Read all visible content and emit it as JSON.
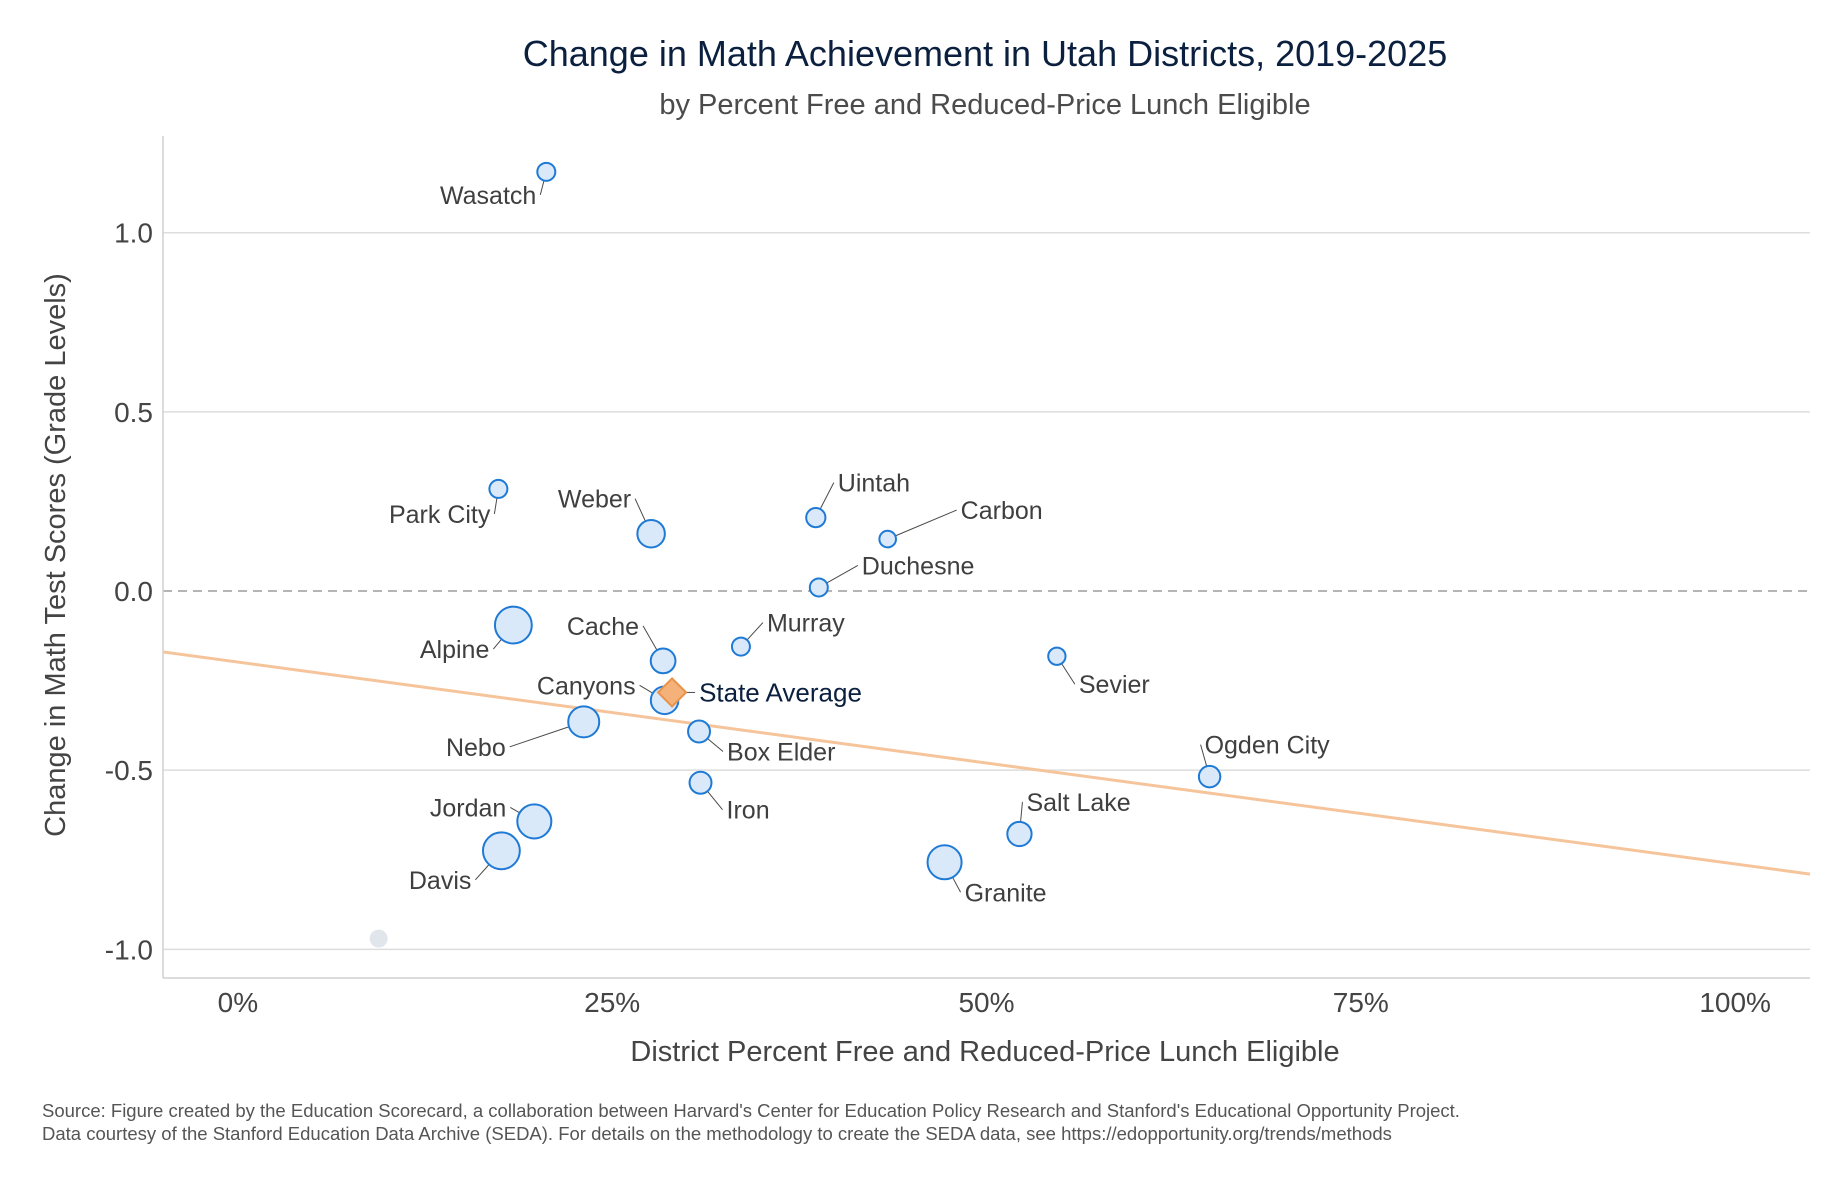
{
  "chart_data": {
    "type": "scatter",
    "title": "Change in Math Achievement in Utah Districts, 2019-2025",
    "subtitle": "by Percent Free and Reduced-Price Lunch Eligible",
    "xlabel": "District Percent Free and Reduced-Price Lunch Eligible",
    "ylabel": "Change in Math Test Scores (Grade Levels)",
    "xlim": [
      -0.05,
      1.05
    ],
    "ylim": [
      -1.08,
      1.27
    ],
    "x_ticks": [
      {
        "value": 0,
        "label": "0%"
      },
      {
        "value": 0.25,
        "label": "25%"
      },
      {
        "value": 0.5,
        "label": "50%"
      },
      {
        "value": 0.75,
        "label": "75%"
      },
      {
        "value": 1.0,
        "label": "100%"
      }
    ],
    "y_ticks": [
      {
        "value": 1.0,
        "label": "1.0"
      },
      {
        "value": 0.5,
        "label": "0.5"
      },
      {
        "value": 0.0,
        "label": "0.0"
      },
      {
        "value": -0.5,
        "label": "-0.5"
      },
      {
        "value": -1.0,
        "label": "-1.0"
      }
    ],
    "grid": true,
    "reference_line_y": 0,
    "trend_line": {
      "x": [
        -0.05,
        1.05
      ],
      "y": [
        -0.17,
        -0.79
      ],
      "color": "#f6c49a"
    },
    "point_color": "#1f7ad6",
    "point_fill": "#d9e9f9",
    "unlabeled_point_color": "#e1e6ec",
    "state_color": "#e8924a",
    "points": [
      {
        "name": "Wasatch",
        "x": 0.206,
        "y": 1.17,
        "size": 1
      },
      {
        "name": "Park City",
        "x": 0.174,
        "y": 0.285,
        "size": 1
      },
      {
        "name": "Weber",
        "x": 0.276,
        "y": 0.16,
        "size": 3
      },
      {
        "name": "Uintah",
        "x": 0.386,
        "y": 0.205,
        "size": 1.2
      },
      {
        "name": "Carbon",
        "x": 0.434,
        "y": 0.145,
        "size": 0.8
      },
      {
        "name": "Duchesne",
        "x": 0.388,
        "y": 0.01,
        "size": 1
      },
      {
        "name": "Alpine",
        "x": 0.184,
        "y": -0.095,
        "size": 6
      },
      {
        "name": "Cache",
        "x": 0.284,
        "y": -0.195,
        "size": 2.3
      },
      {
        "name": "Murray",
        "x": 0.336,
        "y": -0.155,
        "size": 1
      },
      {
        "name": "Sevier",
        "x": 0.547,
        "y": -0.182,
        "size": 0.9
      },
      {
        "name": "Canyons",
        "x": 0.285,
        "y": -0.305,
        "size": 3
      },
      {
        "name": "Nebo",
        "x": 0.231,
        "y": -0.365,
        "size": 4
      },
      {
        "name": "Box Elder",
        "x": 0.308,
        "y": -0.392,
        "size": 1.7
      },
      {
        "name": "Ogden City",
        "x": 0.649,
        "y": -0.518,
        "size": 1.6
      },
      {
        "name": "Iron",
        "x": 0.309,
        "y": -0.535,
        "size": 1.7
      },
      {
        "name": "Salt Lake",
        "x": 0.522,
        "y": -0.678,
        "size": 2.2
      },
      {
        "name": "Jordan",
        "x": 0.198,
        "y": -0.643,
        "size": 5
      },
      {
        "name": "Davis",
        "x": 0.176,
        "y": -0.725,
        "size": 6
      },
      {
        "name": "Granite",
        "x": 0.472,
        "y": -0.757,
        "size": 5
      }
    ],
    "unlabeled_points": [
      {
        "x": 0.094,
        "y": -0.97
      }
    ],
    "state_average": {
      "name": "State Average",
      "x": 0.29,
      "y": -0.283
    },
    "source_lines": [
      "Source: Figure created by the Education Scorecard, a collaboration between Harvard's Center for Education Policy Research and Stanford's Educational Opportunity Project.",
      "Data courtesy of the Stanford Education Data Archive (SEDA). For details on the methodology to create the SEDA data, see https://edopportunity.org/trends/methods"
    ]
  }
}
